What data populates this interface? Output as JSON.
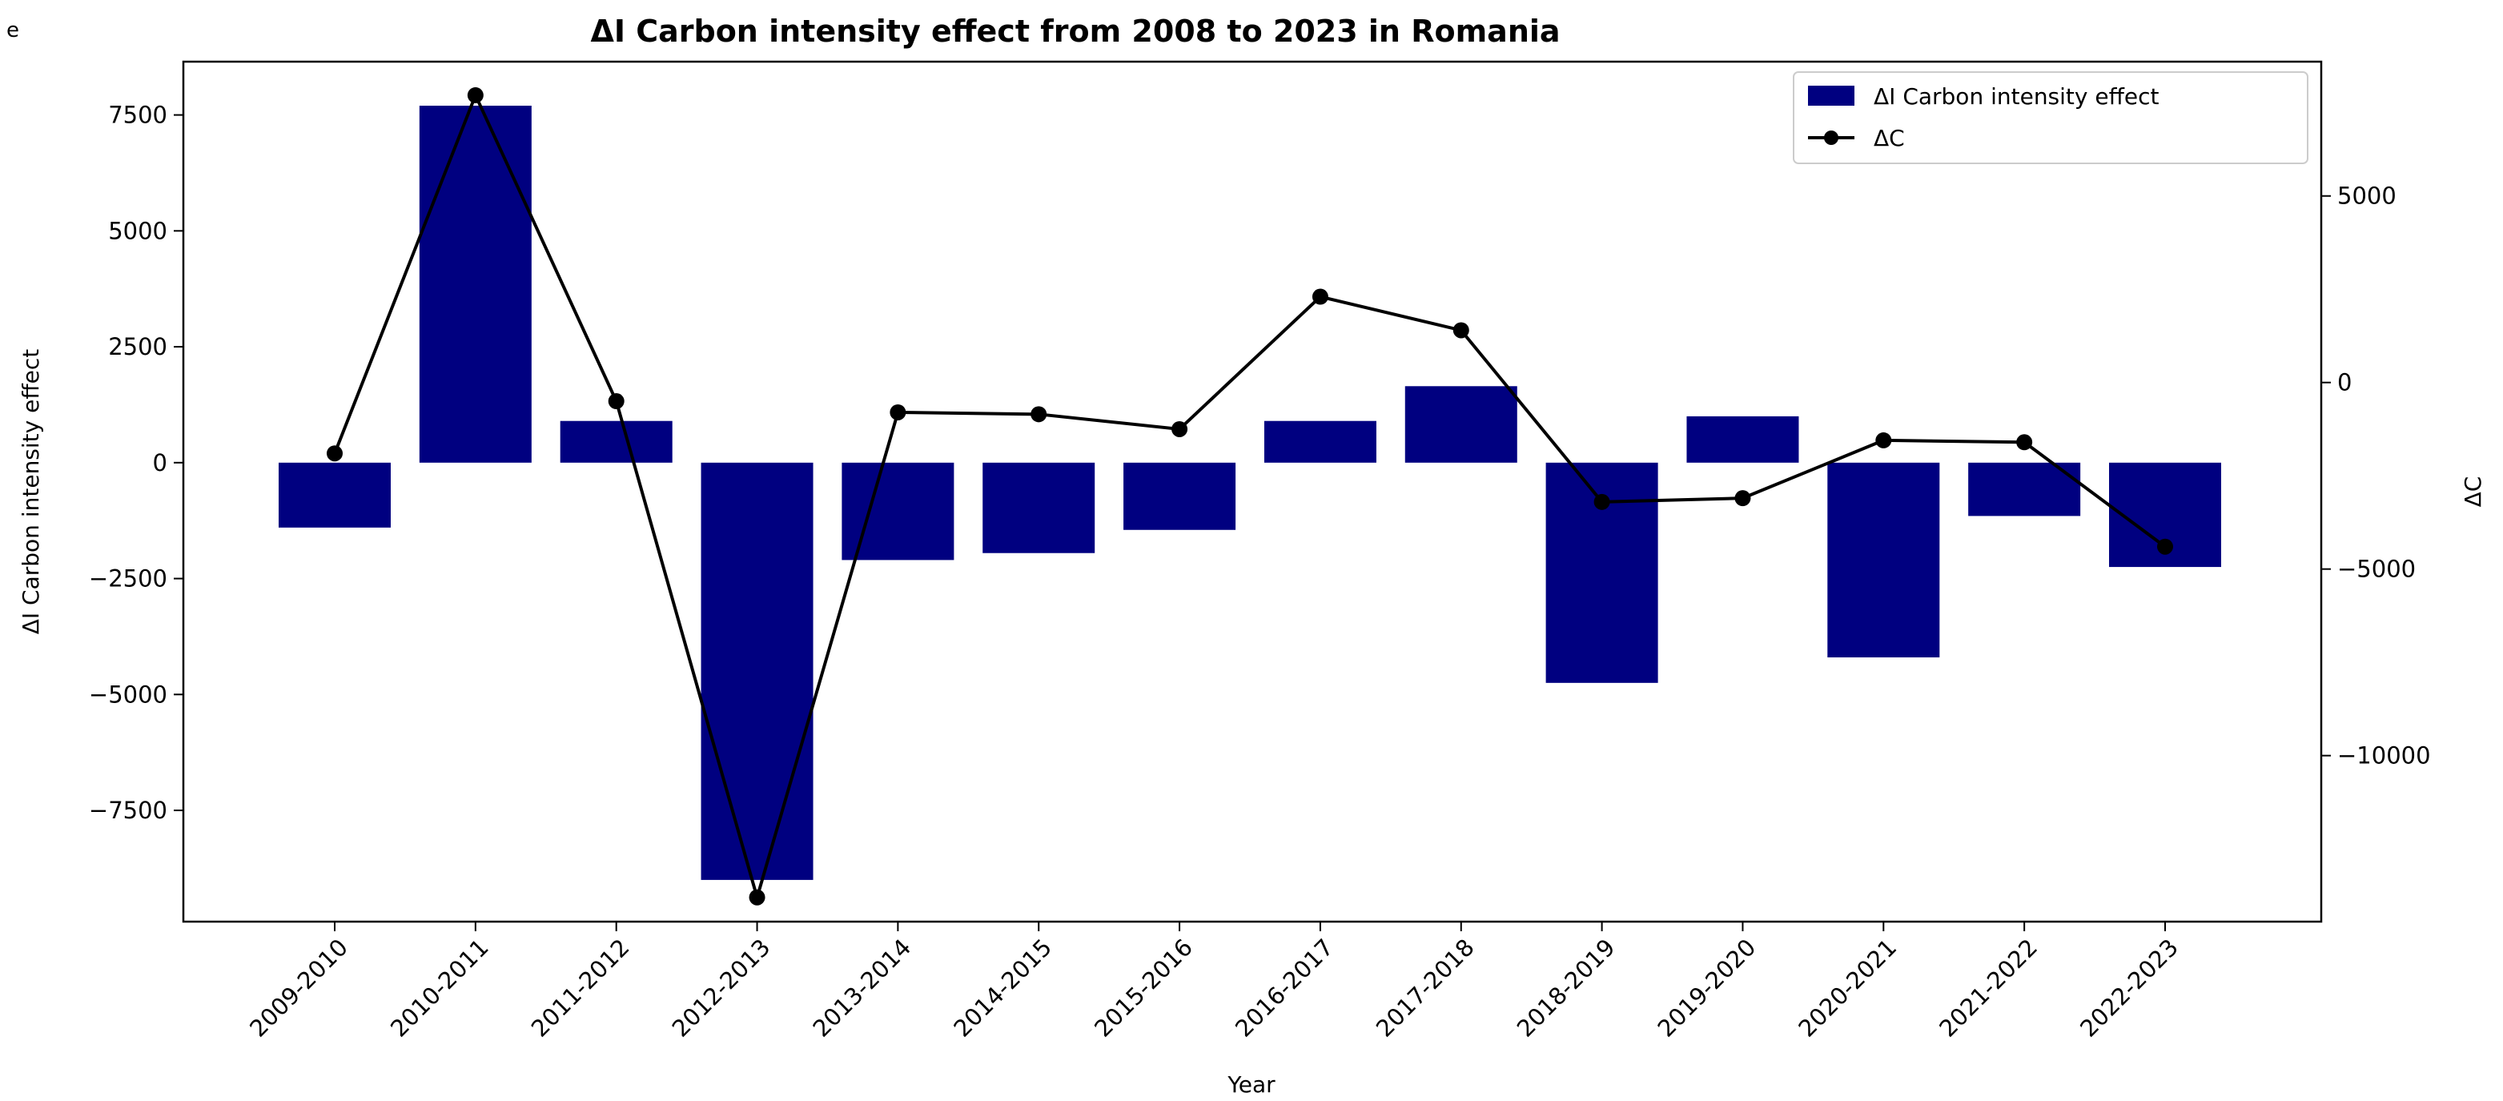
{
  "panel_label": "e",
  "chart_data": {
    "type": "bar",
    "title": "ΔI Carbon intensity effect from 2008 to 2023 in Romania",
    "xlabel": "Year",
    "ylabel": "ΔI Carbon intensity effect",
    "y2label": "ΔC",
    "categories": [
      "2009-2010",
      "2010-2011",
      "2011-2012",
      "2012-2013",
      "2013-2014",
      "2014-2015",
      "2015-2016",
      "2016-2017",
      "2017-2018",
      "2018-2019",
      "2019-2020",
      "2020-2021",
      "2021-2022",
      "2022-2023"
    ],
    "ylim": [
      -9900,
      8650
    ],
    "yticks": [
      -7500,
      -5000,
      -2500,
      0,
      2500,
      5000,
      7500
    ],
    "ytick_labels": [
      "−7500",
      "−5000",
      "−2500",
      "0",
      "2500",
      "5000",
      "7500"
    ],
    "y2lim": [
      -14450,
      8600
    ],
    "y2ticks": [
      -10000,
      -5000,
      0,
      5000
    ],
    "y2tick_labels": [
      "−10000",
      "−5000",
      "0",
      "5000"
    ],
    "series": [
      {
        "name": "ΔI Carbon intensity effect",
        "type": "bar",
        "axis": "left",
        "color": "#000080",
        "values": [
          -1400,
          7700,
          900,
          -9000,
          -2100,
          -1950,
          -1450,
          900,
          1650,
          -4750,
          1000,
          -4200,
          -1150,
          -2250
        ]
      },
      {
        "name": "ΔC",
        "type": "line",
        "axis": "right",
        "color": "#000000",
        "marker": "circle",
        "values": [
          -1900,
          7700,
          -500,
          -13800,
          -800,
          -850,
          -1250,
          2300,
          1400,
          -3200,
          -3100,
          -1550,
          -1600,
          -4400
        ]
      }
    ],
    "legend": "top-right"
  }
}
